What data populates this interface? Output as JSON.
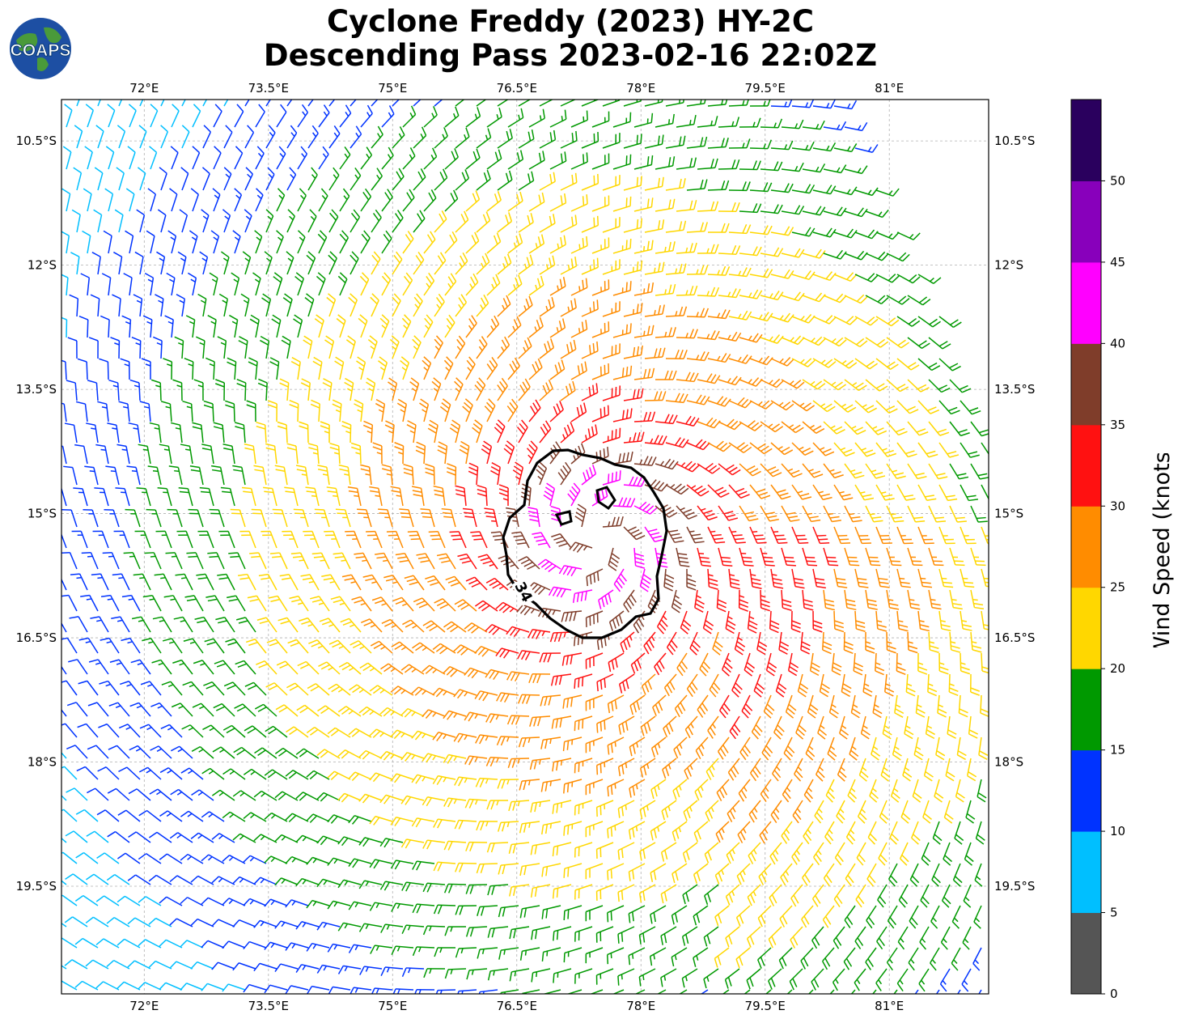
{
  "header": {
    "title_line1": "Cyclone Freddy (2023) HY-2C",
    "title_line2": "Descending Pass 2023-02-16 22:02Z"
  },
  "logo": {
    "text": "COAPS"
  },
  "map": {
    "lon_range": [
      71.0,
      82.2
    ],
    "lat_range": [
      -10.0,
      -20.8
    ],
    "lon_ticks": [
      "72°E",
      "73.5°E",
      "75°E",
      "76.5°E",
      "78°E",
      "79.5°E",
      "81°E"
    ],
    "lat_ticks": [
      "10.5°S",
      "12°S",
      "13.5°S",
      "15°S",
      "16.5°S",
      "18°S",
      "19.5°S"
    ],
    "storm_center": {
      "lon": 77.5,
      "lat": -15.3
    },
    "contour_label": "34"
  },
  "colorbar": {
    "label": "Wind Speed (knots)",
    "ticks": [
      "0",
      "5",
      "10",
      "15",
      "20",
      "25",
      "30",
      "35",
      "40",
      "45",
      "50"
    ],
    "colors": [
      "#555555",
      "#00bfff",
      "#0033ff",
      "#009900",
      "#ffd700",
      "#ff8c00",
      "#ff1111",
      "#7f3d2a",
      "#ff00ff",
      "#8800bb",
      "#2a005e"
    ]
  }
}
